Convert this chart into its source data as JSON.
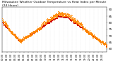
{
  "title": "Milwaukee Weather Outdoor Temperature vs Heat Index per Minute (24 Hours)",
  "title_fontsize": 3.2,
  "bg_color": "#ffffff",
  "temp_color": "#cc0000",
  "heat_color": "#ff8800",
  "ylabel_fontsize": 3.0,
  "xlabel_fontsize": 2.5,
  "ylim": [
    58,
    92
  ],
  "yticks": [
    60,
    65,
    70,
    75,
    80,
    85,
    90
  ],
  "num_points": 1440,
  "dot_size": 0.4,
  "seed": 42
}
